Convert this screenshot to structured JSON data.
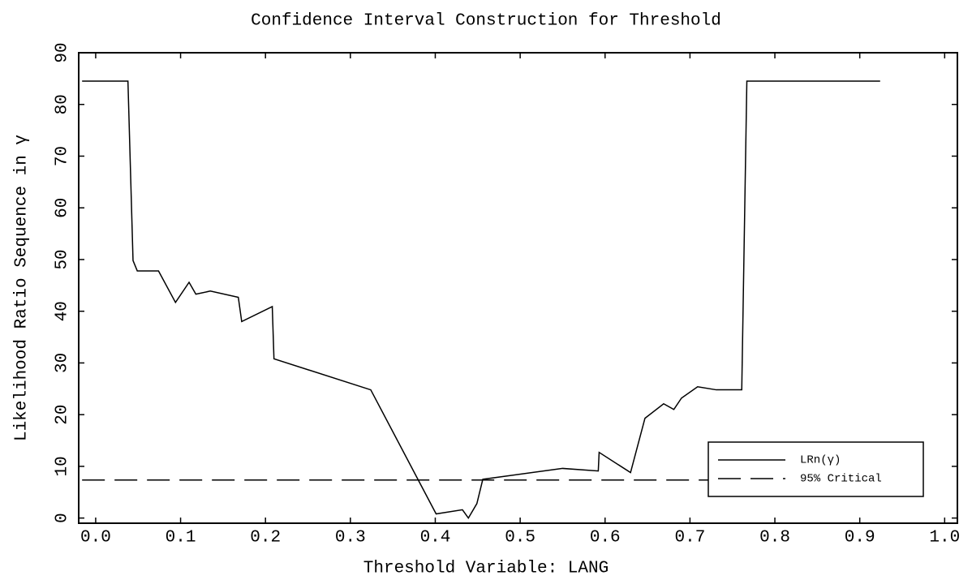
{
  "chart_data": {
    "type": "line",
    "title": "Confidence Interval Construction for Threshold",
    "xlabel": "Threshold Variable: LANG",
    "ylabel": "Likelihood Ratio Sequence in γ",
    "xlim": [
      -0.02,
      1.015
    ],
    "ylim": [
      -1,
      90
    ],
    "xticks": [
      {
        "value": 0,
        "label": "0.0"
      },
      0.1,
      0.2,
      0.3,
      0.4,
      0.5,
      0.6,
      0.7,
      0.8,
      0.9,
      {
        "value": 1,
        "label": "1.0"
      }
    ],
    "yticks": [
      0,
      10,
      20,
      30,
      40,
      50,
      60,
      70,
      80,
      90
    ],
    "legend": "lower right",
    "series": [
      {
        "name": "LRn(γ)",
        "color": "#000000",
        "dashed": false,
        "x": [
          -0.016,
          0.038,
          0.044,
          0.049,
          0.074,
          0.094,
          0.11,
          0.118,
          0.135,
          0.168,
          0.172,
          0.208,
          0.21,
          0.324,
          0.401,
          0.432,
          0.439,
          0.449,
          0.456,
          0.55,
          0.592,
          0.593,
          0.63,
          0.647,
          0.669,
          0.681,
          0.69,
          0.709,
          0.731,
          0.761,
          0.767,
          0.924
        ],
        "values": [
          84.5,
          84.5,
          49.8,
          47.8,
          47.8,
          41.7,
          45.6,
          43.3,
          43.9,
          42.7,
          38.0,
          40.9,
          30.8,
          24.8,
          0.8,
          1.6,
          0,
          2.8,
          7.5,
          9.6,
          9.1,
          12.7,
          8.8,
          19.3,
          22.1,
          21.0,
          23.2,
          25.4,
          24.8,
          24.8,
          84.5,
          84.5
        ]
      },
      {
        "name": "95% Critical",
        "color": "#000000",
        "dashed": true,
        "x": [
          -0.016,
          0.924
        ],
        "values": [
          7.35,
          7.35
        ]
      }
    ]
  }
}
